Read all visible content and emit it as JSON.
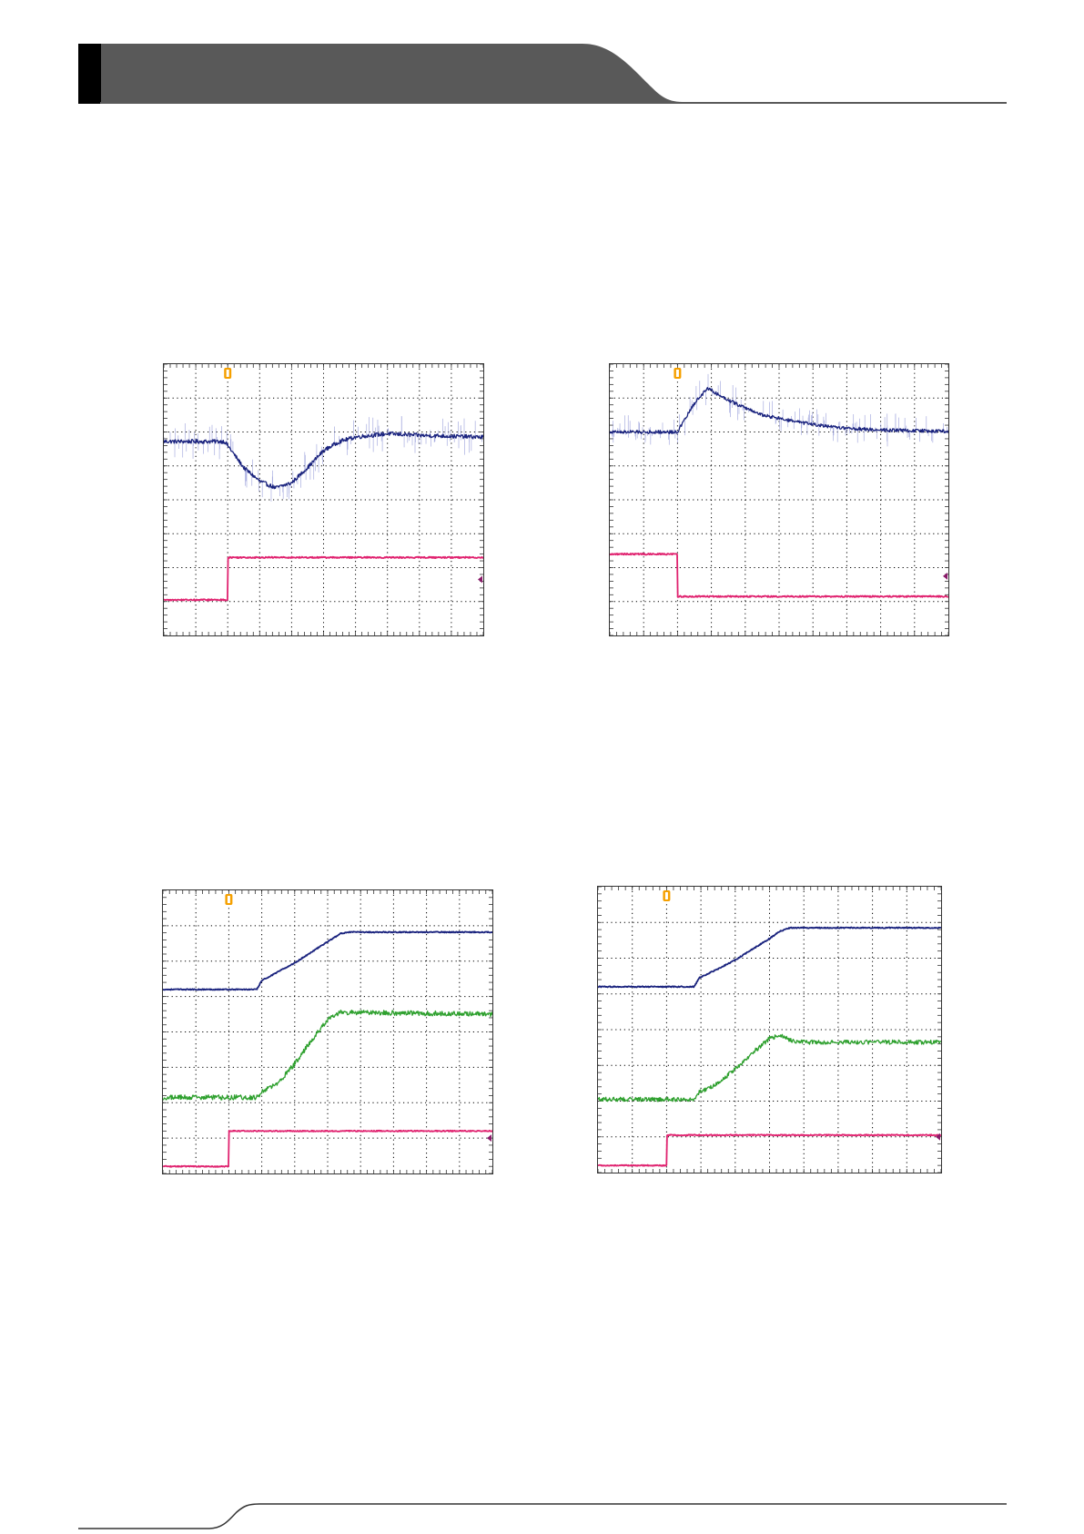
{
  "page": {
    "header_band_color": "#595959",
    "header_tab_color": "#000000",
    "rule_color": "#595959"
  },
  "colors": {
    "ch_blue": "#1a237e",
    "ch_blue_spike": "#8c93d6",
    "ch_pink": "#e0226f",
    "ch_green": "#2ea02e",
    "grid": "#000000",
    "trigger_marker": "#f5a000",
    "ref_marker": "#8a1a6a"
  },
  "chart_data": [
    {
      "type": "line",
      "title": "",
      "grid": true,
      "divisions": {
        "x": 10,
        "y": 8
      },
      "xlim": [
        0,
        10
      ],
      "ylim": [
        0,
        8
      ],
      "trigger_div": 2,
      "series": [
        {
          "color": "ch_blue",
          "noise": 0.06,
          "spikes": 0.55,
          "x": [
            0,
            1.9,
            2.0,
            2.5,
            3.0,
            3.5,
            4.0,
            4.5,
            5.0,
            5.5,
            6.0,
            7.0,
            8.0,
            10.0
          ],
          "y": [
            5.72,
            5.72,
            5.6,
            4.95,
            4.55,
            4.35,
            4.5,
            4.95,
            5.45,
            5.72,
            5.85,
            5.95,
            5.9,
            5.85
          ]
        },
        {
          "color": "ch_pink",
          "noise": 0.02,
          "spikes": 0,
          "x": [
            0,
            2.0,
            2.0,
            10.0
          ],
          "y": [
            1.05,
            1.05,
            2.3,
            2.3
          ]
        }
      ]
    },
    {
      "type": "line",
      "title": "",
      "grid": true,
      "divisions": {
        "x": 10,
        "y": 8
      },
      "xlim": [
        0,
        10
      ],
      "ylim": [
        0,
        8
      ],
      "trigger_div": 2,
      "series": [
        {
          "color": "ch_blue",
          "noise": 0.05,
          "spikes": 0.5,
          "x": [
            0,
            2.0,
            2.5,
            2.9,
            3.2,
            3.8,
            4.5,
            5.5,
            6.5,
            7.5,
            8.5,
            10.0
          ],
          "y": [
            6.0,
            6.0,
            6.85,
            7.3,
            7.1,
            6.8,
            6.5,
            6.3,
            6.15,
            6.08,
            6.05,
            6.02
          ]
        },
        {
          "color": "ch_pink",
          "noise": 0.02,
          "spikes": 0,
          "x": [
            0,
            2.0,
            2.0,
            10.0
          ],
          "y": [
            2.4,
            2.4,
            1.15,
            1.15
          ]
        }
      ]
    },
    {
      "type": "line",
      "title": "",
      "grid": true,
      "divisions": {
        "x": 10,
        "y": 8
      },
      "xlim": [
        0,
        10
      ],
      "ylim": [
        0,
        8
      ],
      "trigger_div": 2,
      "series": [
        {
          "color": "ch_blue",
          "noise": 0.015,
          "spikes": 0,
          "x": [
            0,
            2.85,
            3.0,
            3.5,
            4.0,
            4.5,
            5.0,
            5.4,
            5.6,
            6.0,
            10.0
          ],
          "y": [
            5.2,
            5.2,
            5.45,
            5.7,
            5.95,
            6.25,
            6.55,
            6.78,
            6.82,
            6.82,
            6.82
          ]
        },
        {
          "color": "ch_green",
          "noise": 0.07,
          "spikes": 0,
          "x": [
            0,
            2.85,
            3.0,
            3.5,
            4.0,
            4.5,
            5.0,
            5.4,
            5.6,
            6.0,
            10.0
          ],
          "y": [
            2.15,
            2.15,
            2.3,
            2.55,
            3.1,
            3.75,
            4.35,
            4.55,
            4.55,
            4.55,
            4.5
          ]
        },
        {
          "color": "ch_pink",
          "noise": 0.015,
          "spikes": 0,
          "x": [
            0,
            2.0,
            2.0,
            10.0
          ],
          "y": [
            0.2,
            0.2,
            1.2,
            1.2
          ]
        }
      ]
    },
    {
      "type": "line",
      "title": "",
      "grid": true,
      "divisions": {
        "x": 10,
        "y": 8
      },
      "xlim": [
        0,
        10
      ],
      "ylim": [
        0,
        8
      ],
      "trigger_div": 2,
      "series": [
        {
          "color": "ch_blue",
          "noise": 0.015,
          "spikes": 0,
          "x": [
            0,
            2.8,
            2.95,
            3.5,
            4.0,
            4.5,
            5.0,
            5.3,
            5.6,
            6.0,
            10.0
          ],
          "y": [
            5.2,
            5.2,
            5.45,
            5.7,
            5.95,
            6.25,
            6.55,
            6.75,
            6.85,
            6.85,
            6.85
          ]
        },
        {
          "color": "ch_green",
          "noise": 0.06,
          "spikes": 0,
          "x": [
            0,
            2.8,
            2.95,
            3.5,
            4.0,
            4.5,
            5.0,
            5.3,
            5.6,
            6.0,
            10.0
          ],
          "y": [
            2.05,
            2.05,
            2.25,
            2.5,
            2.9,
            3.35,
            3.75,
            3.85,
            3.7,
            3.65,
            3.65
          ]
        },
        {
          "color": "ch_pink",
          "noise": 0.015,
          "spikes": 0,
          "x": [
            0,
            2.0,
            2.0,
            10.0
          ],
          "y": [
            0.2,
            0.2,
            1.05,
            1.05
          ]
        }
      ]
    }
  ]
}
